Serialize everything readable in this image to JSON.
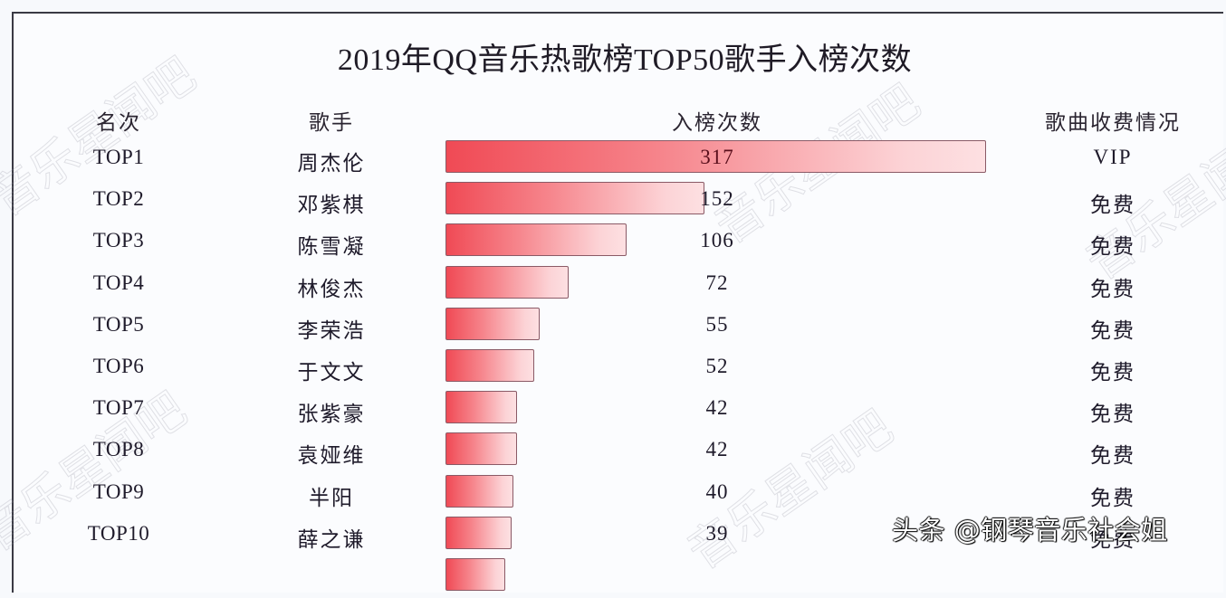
{
  "chart_data": {
    "type": "bar",
    "orientation": "horizontal",
    "title": "2019年QQ音乐热歌榜TOP50歌手入榜次数",
    "columns": [
      "名次",
      "歌手",
      "入榜次数",
      "歌曲收费情况"
    ],
    "categories": [
      "周杰伦",
      "邓紫棋",
      "陈雪凝",
      "林俊杰",
      "李荣浩",
      "于文文",
      "张紫豪",
      "袁娅维",
      "半阳",
      "薛之谦"
    ],
    "ranks": [
      "TOP1",
      "TOP2",
      "TOP3",
      "TOP4",
      "TOP5",
      "TOP6",
      "TOP7",
      "TOP8",
      "TOP9",
      "TOP10"
    ],
    "values": [
      317,
      152,
      106,
      72,
      55,
      52,
      42,
      42,
      40,
      39
    ],
    "fees": [
      "VIP",
      "免费",
      "免费",
      "免费",
      "免费",
      "免费",
      "免费",
      "免费",
      "免费",
      "免费"
    ],
    "xlabel": "",
    "ylabel": "",
    "grid": false,
    "legend": null,
    "bar_color_gradient": [
      "#f04a55",
      "#fde0e2"
    ],
    "bar_border_color": "#8a5a66"
  },
  "header": {
    "title": "2019年QQ音乐热歌榜TOP50歌手入榜次数",
    "col_rank": "名次",
    "col_singer": "歌手",
    "col_count": "入榜次数",
    "col_fee": "歌曲收费情况"
  },
  "rows": [
    {
      "rank": "TOP1",
      "singer": "周杰伦",
      "count": "317",
      "fee": "VIP"
    },
    {
      "rank": "TOP2",
      "singer": "邓紫棋",
      "count": "152",
      "fee": "免费"
    },
    {
      "rank": "TOP3",
      "singer": "陈雪凝",
      "count": "106",
      "fee": "免费"
    },
    {
      "rank": "TOP4",
      "singer": "林俊杰",
      "count": "72",
      "fee": "免费"
    },
    {
      "rank": "TOP5",
      "singer": "李荣浩",
      "count": "55",
      "fee": "免费"
    },
    {
      "rank": "TOP6",
      "singer": "于文文",
      "count": "52",
      "fee": "免费"
    },
    {
      "rank": "TOP7",
      "singer": "张紫豪",
      "count": "42",
      "fee": "免费"
    },
    {
      "rank": "TOP8",
      "singer": "袁娅维",
      "count": "42",
      "fee": "免费"
    },
    {
      "rank": "TOP9",
      "singer": "半阳",
      "count": "40",
      "fee": "免费"
    },
    {
      "rank": "TOP10",
      "singer": "薛之谦",
      "count": "39",
      "fee": "免费"
    }
  ],
  "watermark": {
    "background_text": "音乐星闻吧",
    "credit": "头条 @钢琴音乐社会姐"
  }
}
